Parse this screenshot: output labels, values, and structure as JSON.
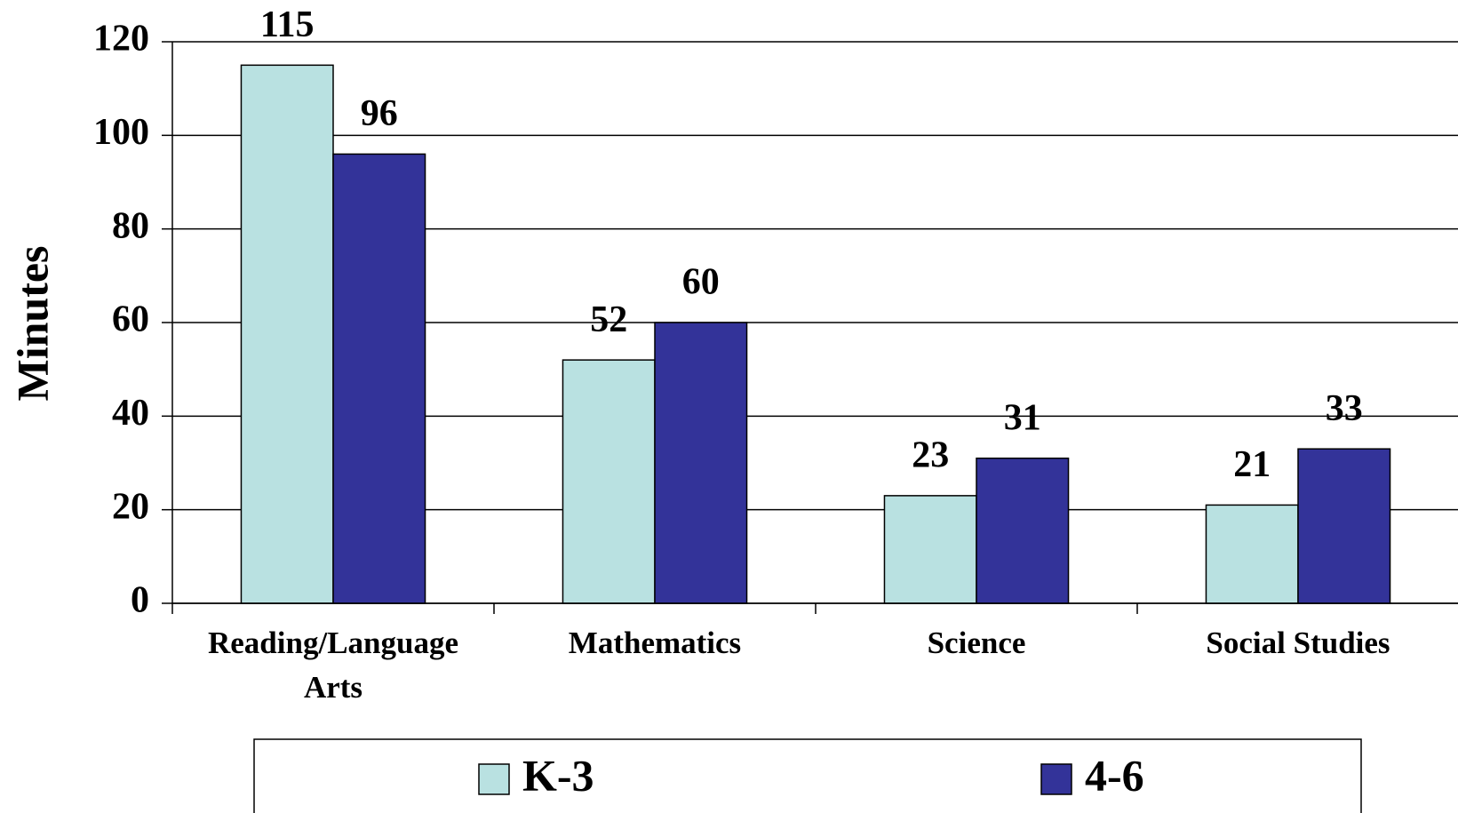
{
  "chart_data": {
    "type": "bar",
    "y_label": "Minutes",
    "categories": [
      "Reading/Language Arts",
      "Mathematics",
      "Science",
      "Social Studies"
    ],
    "series": [
      {
        "name": "K-3",
        "color": "#b9e1e1",
        "values": [
          115,
          52,
          23,
          21
        ]
      },
      {
        "name": "4-6",
        "color": "#333399",
        "values": [
          96,
          60,
          31,
          33
        ]
      }
    ],
    "ylim": [
      0,
      120
    ],
    "yticks": [
      0,
      20,
      40,
      60,
      80,
      100,
      120
    ],
    "grid": true,
    "legend": "bottom"
  }
}
